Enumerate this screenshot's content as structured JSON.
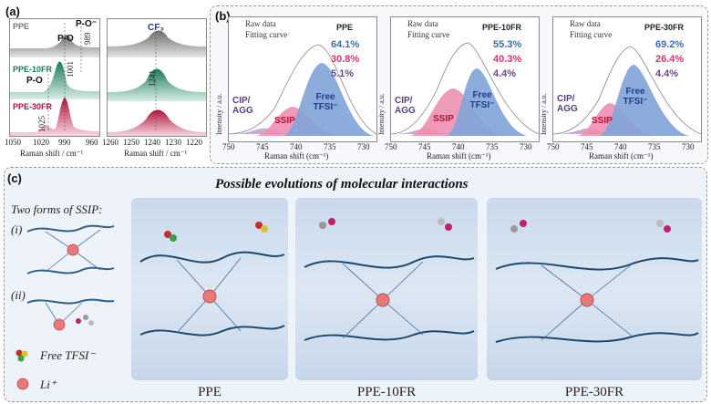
{
  "panel_a": {
    "label": "(a)",
    "left_plot": {
      "samples": [
        "PPE",
        "PPE-10FR",
        "PPE-30FR"
      ],
      "annotations": [
        "P-O⁻",
        "P-O",
        "P-O",
        "989",
        "1001",
        "1025"
      ],
      "ticks": [
        "1050",
        "1020",
        "990",
        "960"
      ],
      "xlabel": "Raman shift / cm⁻¹"
    },
    "right_plot": {
      "annotation": "CF₃",
      "peak": "1241",
      "ticks": [
        "1260",
        "1250",
        "1240",
        "1230",
        "1220"
      ],
      "xlabel": "Raman shift / cm⁻¹"
    }
  },
  "panel_b": {
    "label": "(b)",
    "legend": [
      "Raw data",
      "Fitting curve"
    ],
    "ylabel": "Intensity / a.u.",
    "xlabel": "Raman shift (cm⁻¹)",
    "ticks": [
      "750",
      "745",
      "740",
      "735",
      "730"
    ],
    "plots": [
      {
        "title": "PPE",
        "free": "64.1%",
        "ssip": "30.8%",
        "cip": "5.1%"
      },
      {
        "title": "PPE-10FR",
        "free": "55.3%",
        "ssip": "40.3%",
        "cip": "4.4%"
      },
      {
        "title": "PPE-30FR",
        "free": "69.2%",
        "ssip": "26.4%",
        "cip": "4.4%"
      }
    ],
    "component_labels": {
      "cip": "CIP/ AGG",
      "ssip": "SSIP",
      "free": "Free TFSI⁻"
    }
  },
  "panel_c": {
    "label": "(c)",
    "title": "Possible evolutions of molecular interactions",
    "two_forms": "Two forms of SSIP:",
    "form_i": "(i)",
    "form_ii": "(ii)",
    "free_tfsi": "Free TFSI⁻",
    "li": "Li⁺",
    "scenes": [
      "PPE",
      "PPE-10FR",
      "PPE-30FR"
    ]
  },
  "colors": {
    "free": "#3b6db3",
    "ssip": "#d8316e",
    "cip": "#6b4a8c",
    "free_fill": "#8fb1dc",
    "ssip_fill": "#ec8fb0",
    "cip_fill": "#a58dbf"
  }
}
